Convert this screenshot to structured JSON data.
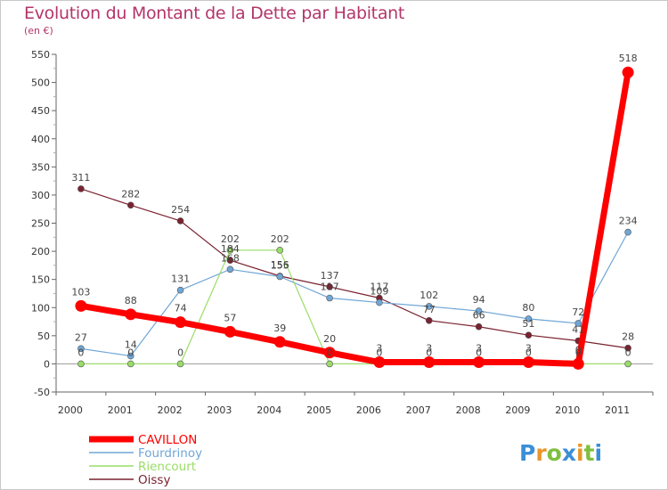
{
  "header": {
    "title": "Evolution du Montant de la Dette par Habitant",
    "subtitle": "(en €)"
  },
  "brand": {
    "logo_letters": [
      "P",
      "r",
      "o",
      "x",
      "i",
      "t",
      "i"
    ],
    "logo_colors": [
      "#3a8fd6",
      "#e8962a",
      "#7fbf3f",
      "#3a8fd6",
      "#e8962a",
      "#7fbf3f",
      "#3a8fd6"
    ]
  },
  "chart_data": {
    "type": "line",
    "x": [
      "2000",
      "2001",
      "2002",
      "2003",
      "2004",
      "2005",
      "2006",
      "2007",
      "2008",
      "2009",
      "2010",
      "2011"
    ],
    "ylim": [
      -50,
      550
    ],
    "yticks": [
      -50,
      0,
      50,
      100,
      150,
      200,
      250,
      300,
      350,
      400,
      450,
      500,
      550
    ],
    "grid": false,
    "legend_position": "bottom-left",
    "series": [
      {
        "name": "Oissy",
        "color": "#7a2230",
        "values": [
          311,
          282,
          254,
          184,
          156,
          137,
          117,
          77,
          66,
          51,
          41,
          28
        ],
        "labels": [
          "311",
          "282",
          "254",
          "184",
          "156",
          "137",
          "117",
          "77",
          "66",
          "51",
          "41",
          "28"
        ]
      },
      {
        "name": "Fourdrinoy",
        "color": "#6fa6d6",
        "values": [
          27,
          14,
          131,
          168,
          155,
          117,
          109,
          102,
          94,
          80,
          72,
          234
        ],
        "labels": [
          "27",
          "14",
          "131",
          "168",
          "155",
          "117",
          "109",
          "102",
          "94",
          "80",
          "72",
          "234"
        ]
      },
      {
        "name": "Riencourt",
        "color": "#99dd66",
        "values": [
          0,
          0,
          0,
          202,
          202,
          0,
          0,
          0,
          0,
          0,
          0,
          0
        ],
        "labels": [
          "0",
          "0",
          "0",
          "202",
          "202",
          "0",
          "0",
          "0",
          "0",
          "0",
          "0",
          "0"
        ]
      },
      {
        "name": "CAVILLON",
        "color": "#ff0000",
        "values": [
          103,
          88,
          74,
          57,
          39,
          20,
          3,
          3,
          3,
          3,
          0,
          518
        ],
        "labels": [
          "103",
          "88",
          "74",
          "57",
          "39",
          "20",
          "3",
          "3",
          "3",
          "3",
          "0",
          "518"
        ]
      }
    ]
  }
}
